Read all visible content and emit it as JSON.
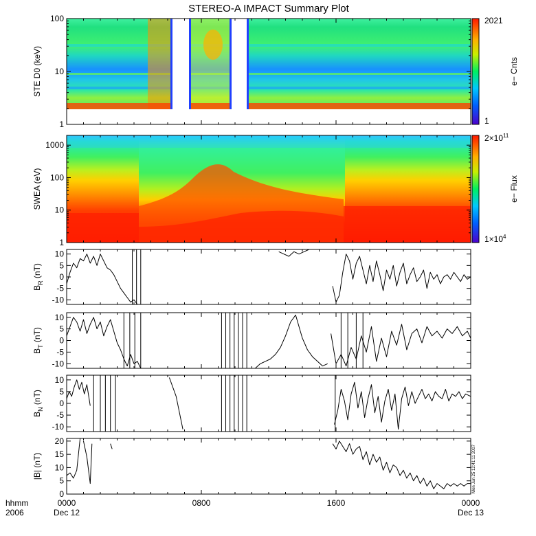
{
  "chart_data": {
    "type": "summary-plot",
    "title": "STEREO-A IMPACT Summary Plot",
    "time_axis": {
      "ticks": [
        {
          "label": "0000",
          "sub": "Dec 12",
          "hours": 0
        },
        {
          "label": "0800",
          "sub": "",
          "hours": 8
        },
        {
          "label": "1600",
          "sub": "",
          "hours": 16
        },
        {
          "label": "0000",
          "sub": "Dec 13",
          "hours": 24
        }
      ],
      "range_hours": [
        0,
        24
      ],
      "left_labels": [
        "hhmm",
        "2006"
      ]
    },
    "panels": [
      {
        "id": "ste",
        "type": "spectrogram",
        "ylabel": "STE D0 (keV)",
        "yscale": "log",
        "ylim": [
          1,
          100
        ],
        "yticks": [
          "1",
          "10",
          "100"
        ],
        "colorbar": {
          "label": "e− Cnts",
          "max": "2021",
          "min": "1"
        },
        "data_gaps_hours": [
          [
            6.2,
            7.0
          ],
          [
            9.3,
            10.3
          ]
        ]
      },
      {
        "id": "swea",
        "type": "spectrogram",
        "ylabel": "SWEA (eV)",
        "yscale": "log",
        "ylim": [
          1,
          2000
        ],
        "yticks": [
          "1",
          "10",
          "100",
          "1000"
        ],
        "colorbar": {
          "label": "e− Flux",
          "max_base": "2×10",
          "max_exp": "11",
          "min_base": "1×10",
          "min_exp": "4"
        }
      },
      {
        "id": "br",
        "type": "line",
        "ylim": [
          -12,
          12
        ],
        "yticks": [
          "-10",
          "-5",
          "0",
          "5",
          "10"
        ],
        "ylabel_main": "B",
        "ylabel_sub": "R",
        "ylabel_unit": " (nT)",
        "segments": [
          {
            "t": [
              0,
              0.2,
              0.4,
              0.6,
              0.8,
              1.0,
              1.2,
              1.4,
              1.6,
              1.8,
              2.0,
              2.2,
              2.4,
              2.6,
              2.8,
              3.0,
              3.2,
              3.4,
              3.6,
              3.8,
              4.0,
              4.2
            ],
            "v": [
              -3,
              2,
              6,
              4,
              8,
              7,
              10,
              6,
              9,
              5,
              10,
              7,
              4,
              3,
              1,
              -2,
              -5,
              -7,
              -9,
              -11,
              -10,
              -12
            ]
          },
          {
            "t": [
              12.6,
              12.9,
              13.2,
              13.5,
              13.8,
              14.1,
              14.4
            ],
            "v": [
              11,
              10,
              9,
              11,
              10,
              11,
              12
            ]
          },
          {
            "t": [
              15.8,
              16.0,
              16.2,
              16.4,
              16.6,
              16.8,
              17.0,
              17.2,
              17.4,
              17.6,
              17.8,
              18.0,
              18.2,
              18.4,
              18.6,
              18.8,
              19.0,
              19.2,
              19.4,
              19.6,
              19.8,
              20.0,
              20.2,
              20.4,
              20.6,
              20.8,
              21.0,
              21.2,
              21.4,
              21.6,
              21.8,
              22.0,
              22.2,
              22.4,
              22.6,
              22.8,
              23.0,
              23.2,
              23.4,
              23.6,
              23.8,
              24.0
            ],
            "v": [
              -4,
              -11,
              -8,
              2,
              10,
              7,
              -1,
              6,
              9,
              3,
              -3,
              5,
              -2,
              7,
              1,
              -6,
              3,
              -1,
              5,
              -4,
              2,
              6,
              -3,
              1,
              4,
              -2,
              0,
              3,
              -5,
              2,
              -1,
              1,
              -3,
              0,
              1,
              -1,
              2,
              0,
              -2,
              1,
              -1,
              0
            ]
          }
        ],
        "vlines_hours": [
          3.9,
          4.15,
          4.4
        ]
      },
      {
        "id": "bt",
        "type": "line",
        "ylim": [
          -12,
          12
        ],
        "yticks": [
          "-10",
          "-5",
          "0",
          "5",
          "10"
        ],
        "ylabel_main": "B",
        "ylabel_sub": "T",
        "ylabel_unit": " (nT)",
        "segments": [
          {
            "t": [
              0,
              0.2,
              0.4,
              0.6,
              0.8,
              1.0,
              1.2,
              1.4,
              1.6,
              1.8,
              2.0,
              2.2,
              2.4,
              2.6,
              2.8,
              3.0,
              3.2,
              3.4,
              3.6,
              3.8,
              4.0,
              4.2,
              4.4
            ],
            "v": [
              2,
              6,
              10,
              8,
              4,
              9,
              3,
              7,
              10,
              5,
              8,
              2,
              6,
              9,
              4,
              -1,
              -4,
              -8,
              -11,
              -6,
              -10,
              -9,
              -12
            ]
          },
          {
            "t": [
              11.2,
              11.5,
              11.8,
              12.1,
              12.4,
              12.7,
              13.0,
              13.3,
              13.6,
              14.0,
              14.3,
              14.6,
              14.9,
              15.2,
              15.5
            ],
            "v": [
              -12,
              -10,
              -9,
              -8,
              -6,
              -3,
              2,
              8,
              11,
              1,
              -4,
              -7,
              -9,
              -11,
              -10
            ]
          },
          {
            "t": [
              15.7,
              16.0,
              16.3,
              16.6,
              16.9,
              17.2,
              17.5,
              17.8,
              18.1,
              18.4,
              18.7,
              19.0,
              19.3,
              19.6,
              19.9,
              20.2,
              20.5,
              20.8,
              21.1,
              21.4,
              21.7,
              22.0,
              22.3,
              22.6,
              22.9,
              23.2,
              23.5,
              23.8,
              24.0
            ],
            "v": [
              3,
              -10,
              -6,
              -11,
              -3,
              -8,
              2,
              -5,
              6,
              -9,
              1,
              -7,
              4,
              -2,
              7,
              -4,
              3,
              5,
              -1,
              6,
              2,
              4,
              1,
              5,
              3,
              6,
              2,
              4,
              1
            ]
          }
        ],
        "vlines_hours": [
          3.4,
          3.75,
          4.05,
          4.4,
          9.2,
          9.45,
          9.7,
          9.95,
          10.2,
          10.45,
          10.7,
          16.3,
          16.7,
          17.2,
          17.6
        ]
      },
      {
        "id": "bn",
        "type": "line",
        "ylim": [
          -12,
          12
        ],
        "yticks": [
          "-10",
          "-5",
          "0",
          "5",
          "10"
        ],
        "ylabel_main": "B",
        "ylabel_sub": "N",
        "ylabel_unit": " (nT)",
        "segments": [
          {
            "t": [
              0,
              0.15,
              0.3,
              0.45,
              0.6,
              0.75,
              0.9,
              1.05,
              1.2,
              1.4
            ],
            "v": [
              2,
              5,
              3,
              7,
              10,
              6,
              9,
              4,
              8,
              -1
            ]
          },
          {
            "t": [
              6.1,
              6.5,
              6.9
            ],
            "v": [
              11,
              3,
              -11
            ]
          },
          {
            "t": [
              15.9,
              16.1,
              16.3,
              16.5,
              16.7,
              16.9,
              17.1,
              17.3,
              17.5,
              17.7,
              17.9,
              18.1,
              18.3,
              18.5,
              18.7,
              18.9,
              19.1,
              19.3,
              19.5,
              19.7,
              19.9,
              20.1,
              20.3,
              20.5,
              20.7,
              20.9,
              21.1,
              21.3,
              21.5,
              21.7,
              21.9,
              22.1,
              22.3,
              22.5,
              22.7,
              22.9,
              23.1,
              23.3,
              23.5,
              23.7,
              24.0
            ],
            "v": [
              -9,
              -3,
              6,
              1,
              -7,
              4,
              9,
              -2,
              5,
              -6,
              2,
              8,
              -4,
              3,
              -8,
              1,
              6,
              -3,
              4,
              -11,
              2,
              7,
              -1,
              5,
              0,
              3,
              6,
              2,
              4,
              1,
              5,
              3,
              2,
              6,
              1,
              4,
              3,
              5,
              2,
              4,
              3
            ]
          }
        ],
        "vlines_hours": [
          1.6,
          2.0,
          2.3,
          2.6,
          2.9,
          9.2,
          9.45,
          9.7,
          9.95,
          10.2,
          10.45,
          10.7,
          15.95
        ]
      },
      {
        "id": "b",
        "type": "line",
        "ylim": [
          0,
          21
        ],
        "yticks": [
          "0",
          "5",
          "10",
          "15",
          "20"
        ],
        "ylabel_main": "|B|",
        "ylabel_sub": "",
        "ylabel_unit": " (nT)",
        "segments": [
          {
            "t": [
              0,
              0.2,
              0.4,
              0.6,
              0.8
            ],
            "v": [
              7,
              8,
              6,
              9,
              21
            ]
          },
          {
            "t": [
              1.0,
              1.2,
              1.4,
              1.5
            ],
            "v": [
              20,
              14,
              4,
              19
            ]
          },
          {
            "t": [
              2.6,
              2.7
            ],
            "v": [
              19,
              17
            ]
          },
          {
            "t": [
              15.8,
              16.0,
              16.2,
              16.4,
              16.6,
              16.8,
              17.0,
              17.2,
              17.4,
              17.6,
              17.8,
              18.0,
              18.2,
              18.4,
              18.6,
              18.8,
              19.0,
              19.2,
              19.4,
              19.6,
              19.8,
              20.0,
              20.2,
              20.4,
              20.6,
              20.8,
              21.0,
              21.2,
              21.4,
              21.6,
              21.8,
              22.0,
              22.2,
              22.4,
              22.6,
              22.8,
              23.0,
              23.2,
              23.4,
              23.6,
              23.8,
              24.0
            ],
            "v": [
              19,
              17,
              20,
              18,
              16,
              19,
              15,
              17,
              18,
              13,
              16,
              11,
              15,
              12,
              14,
              9,
              12,
              8,
              11,
              10,
              7,
              9,
              6,
              8,
              5,
              7,
              4,
              6,
              3,
              5,
              2,
              4,
              3,
              2,
              4,
              3,
              4,
              3,
              4,
              3,
              4,
              4
            ]
          }
        ]
      }
    ],
    "stamp": "Mon Jun 25 12:41:11 2007"
  }
}
